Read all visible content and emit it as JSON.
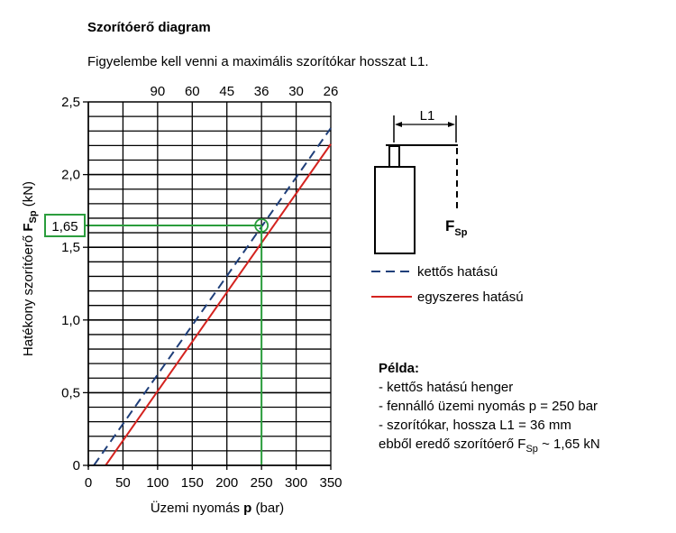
{
  "title": "Szorítóerő diagram",
  "subtitle": "Figyelembe kell venni a maximális szorítókar hosszat L1.",
  "chart_data": {
    "type": "line",
    "xlabel_main": "Üzemi nyomás ",
    "xlabel_bold": "p",
    "xlabel_unit": " (bar)",
    "ylabel_main": "Hatékony szorítóerő ",
    "ylabel_bold": "F",
    "ylabel_sub": "Sp",
    "ylabel_unit": " (kN)",
    "xlim": [
      0,
      350
    ],
    "ylim": [
      0,
      2.5
    ],
    "x_ticks": [
      0,
      50,
      100,
      150,
      200,
      250,
      300,
      350
    ],
    "x_tick_labels": [
      "0",
      "50",
      "100",
      "150",
      "200",
      "250",
      "300",
      "350"
    ],
    "y_ticks": [
      0,
      0.5,
      1.0,
      1.5,
      2.0,
      2.5
    ],
    "y_tick_labels": [
      "0",
      "0,5",
      "1,0",
      "1,5",
      "2,0",
      "2,5"
    ],
    "top_axis_labels": [
      "90",
      "60",
      "45",
      "36",
      "30",
      "26"
    ],
    "grid": true,
    "series": [
      {
        "name": "kettős hatású",
        "color": "#1f3f7a",
        "dash": true,
        "x": [
          8,
          350
        ],
        "y": [
          0,
          2.32
        ]
      },
      {
        "name": "egyszeres hatású",
        "color": "#d4231f",
        "dash": false,
        "x": [
          25,
          350
        ],
        "y": [
          0,
          2.21
        ]
      }
    ],
    "highlight": {
      "x": 250,
      "y": 1.65,
      "label": "1,65",
      "color": "#2a9d3c"
    }
  },
  "diagram": {
    "l1_label": "L1",
    "force_label": "F",
    "force_sub": "Sp"
  },
  "example": {
    "title": "Példa:",
    "line1": "- kettős hatású henger",
    "line2": "- fennálló üzemi nyomás p = 250 bar",
    "line3": "- szorítókar, hossza L1 = 36 mm",
    "line4_pre": "ebből eredő szorítóerő F",
    "line4_sub": "Sp",
    "line4_post": " ~ 1,65 kN"
  }
}
